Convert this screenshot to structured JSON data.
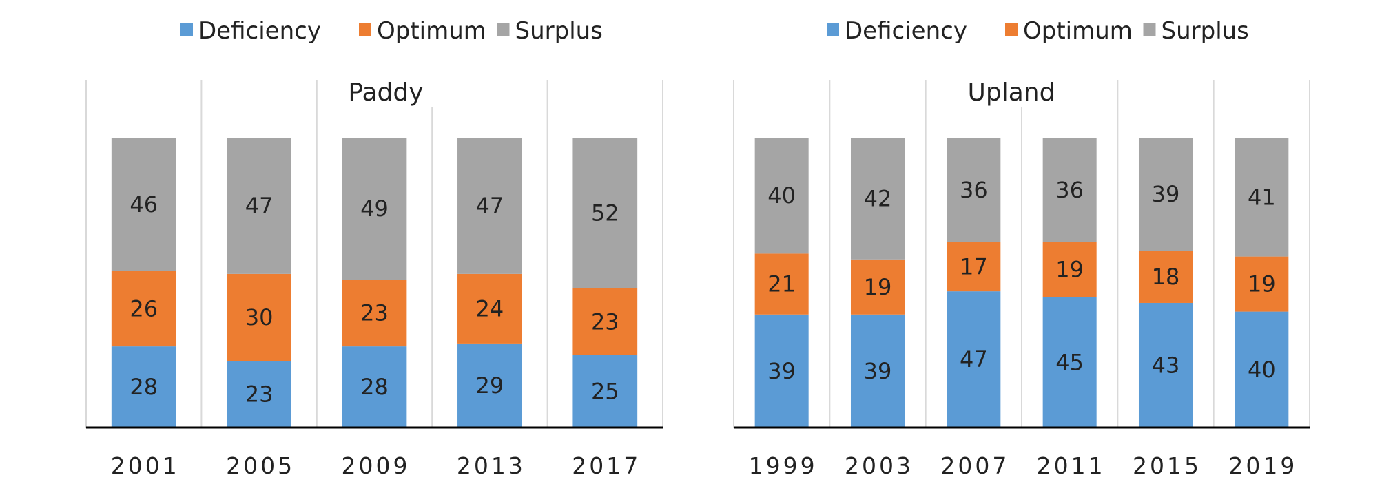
{
  "chart_data": [
    {
      "type": "bar",
      "stacked": true,
      "title": "Paddy",
      "categories": [
        "2001",
        "2005",
        "2009",
        "2013",
        "2017"
      ],
      "series": [
        {
          "name": "Deficiency",
          "color": "#5b9bd5",
          "values": [
            28,
            23,
            28,
            29,
            25
          ]
        },
        {
          "name": "Optimum",
          "color": "#ed7d31",
          "values": [
            26,
            30,
            23,
            24,
            23
          ]
        },
        {
          "name": "Surplus",
          "color": "#a5a5a5",
          "values": [
            46,
            47,
            49,
            47,
            52
          ]
        }
      ],
      "ylim": [
        0,
        100
      ],
      "grid": "vertical",
      "legend": "top"
    },
    {
      "type": "bar",
      "stacked": true,
      "title": "Upland",
      "categories": [
        "1999",
        "2003",
        "2007",
        "2011",
        "2015",
        "2019"
      ],
      "series": [
        {
          "name": "Deficiency",
          "color": "#5b9bd5",
          "values": [
            39,
            39,
            47,
            45,
            43,
            40
          ]
        },
        {
          "name": "Optimum",
          "color": "#ed7d31",
          "values": [
            21,
            19,
            17,
            19,
            18,
            19
          ]
        },
        {
          "name": "Surplus",
          "color": "#a5a5a5",
          "values": [
            40,
            42,
            36,
            36,
            39,
            41
          ]
        }
      ],
      "ylim": [
        0,
        100
      ],
      "grid": "vertical",
      "legend": "top"
    }
  ]
}
